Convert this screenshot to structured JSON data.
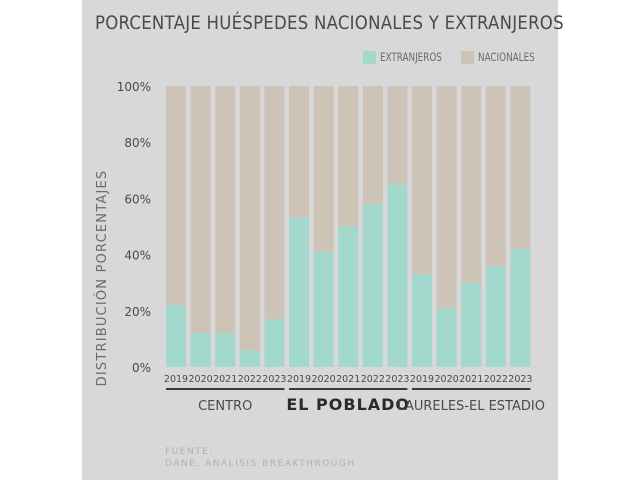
{
  "title": "PORCENTAJE HUÉSPEDES NACIONALES Y EXTRANJEROS",
  "colors": {
    "extranjeros": "#a3d9cc",
    "nacionales": "#cdc3b7",
    "background": "#d8d8d8",
    "text": "#4a4a4a"
  },
  "source": {
    "line1": "FUENTE:",
    "line2": "DANE. ANÁLISIS BREAKTHROUGH"
  },
  "chart_data": {
    "type": "bar",
    "stacked": true,
    "normalized_percent": true,
    "title": "PORCENTAJE HUÉSPEDES NACIONALES Y EXTRANJEROS",
    "ylabel": "DISTRIBUCIÓN PORCENTAJES",
    "ylim": [
      0,
      100
    ],
    "yticks": [
      "0%",
      "20%",
      "40%",
      "60%",
      "80%",
      "100%"
    ],
    "legend_position": "top-right",
    "grid": false,
    "groups": [
      {
        "name": "CENTRO",
        "emphasis": false
      },
      {
        "name": "EL POBLADO",
        "emphasis": true
      },
      {
        "name": "LAURELES-EL ESTADIO",
        "emphasis": false
      }
    ],
    "categories": [
      "2019",
      "2020",
      "2021",
      "2022",
      "2023",
      "2019",
      "2020",
      "2021",
      "2022",
      "2023",
      "2019",
      "2020",
      "2021",
      "2022",
      "2023"
    ],
    "series": [
      {
        "name": "EXTRANJEROS",
        "values": [
          22,
          12,
          12,
          6,
          17,
          53,
          41,
          50,
          58,
          65,
          33,
          21,
          30,
          36,
          42
        ]
      },
      {
        "name": "NACIONALES",
        "values": [
          78,
          88,
          88,
          94,
          83,
          47,
          59,
          50,
          42,
          35,
          67,
          79,
          70,
          64,
          58
        ]
      }
    ]
  }
}
